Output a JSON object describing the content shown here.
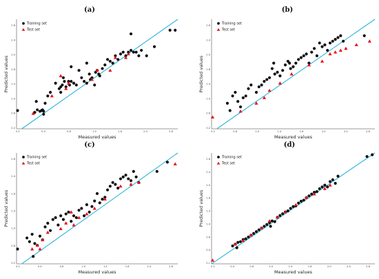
{
  "colors": {
    "fit_line": "#2bb5da",
    "training": "#111111",
    "test": "#e8101a",
    "axes": "#7a7a7a"
  },
  "chart_data": [
    {
      "panel": "(a)",
      "type": "scatter",
      "xlabel": "Measured values",
      "ylabel": "Predicted values",
      "xlim": [
        0.1,
        3.2
      ],
      "ylim": [
        0.2,
        3.2
      ],
      "xticks": [
        "0.1",
        "0.4",
        "0.8",
        "1.0",
        "1.6",
        "2.4",
        "2.8"
      ],
      "yticks": [
        "0.2",
        "0.6",
        "1.0",
        "1.4",
        "1.8",
        "2.0",
        "2.4",
        "2.8"
      ],
      "legend": {
        "placement": "top-left",
        "entries": [
          "Training set",
          "Test set"
        ]
      },
      "series": [
        {
          "name": "Training set",
          "marker": "circle",
          "x": [
            0.12,
            0.45,
            0.5,
            0.55,
            0.6,
            0.48,
            0.62,
            0.65,
            0.58,
            0.7,
            0.62,
            0.75,
            0.92,
            0.95,
            0.85,
            0.98,
            1.05,
            1.1,
            1.12,
            1.02,
            1.2,
            1.25,
            1.3,
            1.15,
            1.35,
            1.4,
            1.45,
            1.5,
            1.52,
            1.55,
            1.6,
            1.62,
            1.65,
            1.7,
            1.68,
            1.75,
            1.8,
            1.85,
            1.9,
            1.95,
            2.0,
            2.05,
            2.1,
            2.15,
            2.2,
            2.25,
            2.3,
            2.35,
            2.4,
            2.45,
            2.5,
            1.15,
            1.45,
            2.6,
            2.75,
            3.05,
            3.15,
            2.3,
            0.95,
            1.0
          ],
          "y": [
            0.7,
            0.65,
            0.72,
            0.68,
            0.72,
            0.95,
            0.6,
            0.9,
            0.7,
            1.1,
            0.68,
            1.2,
            1.3,
            1.35,
            1.45,
            1.4,
            1.35,
            1.5,
            1.4,
            1.5,
            1.45,
            1.4,
            1.8,
            1.5,
            1.6,
            1.5,
            1.45,
            1.7,
            1.55,
            1.6,
            1.4,
            1.75,
            1.8,
            1.65,
            1.7,
            1.85,
            1.95,
            2.1,
            2.05,
            2.0,
            2.2,
            2.1,
            2.25,
            2.3,
            2.2,
            2.3,
            2.35,
            2.3,
            2.3,
            2.2,
            2.35,
            1.9,
            2.0,
            2.2,
            2.45,
            2.9,
            2.9,
            2.8,
            1.2,
            1.6
          ]
        },
        {
          "name": "Test set",
          "marker": "triangle",
          "x": [
            0.42,
            0.78,
            0.95,
            1.05,
            1.1,
            1.55,
            1.65,
            1.9,
            2.0,
            2.2,
            2.25
          ],
          "y": [
            0.62,
            1.1,
            1.65,
            1.3,
            1.45,
            1.55,
            1.8,
            1.8,
            2.15,
            2.15,
            2.25
          ]
        }
      ]
    },
    {
      "panel": "(b)",
      "type": "scatter",
      "xlabel": "Measured values",
      "ylabel": "Predicted values",
      "xlim": [
        0.1,
        3.2
      ],
      "ylim": [
        0.2,
        3.2
      ],
      "xticks": [
        "0.2",
        "0.6",
        "1.0",
        "1.4",
        "1.8",
        "2.0",
        "2.4",
        "2.8"
      ],
      "yticks": [
        "0.2",
        "0.6",
        "1.0",
        "1.4",
        "1.8",
        "2.0",
        "2.4",
        "2.8"
      ],
      "legend": {
        "placement": "top-left",
        "entries": [
          "Training set",
          "Test set"
        ]
      },
      "series": [
        {
          "name": "Training set",
          "marker": "circle",
          "x": [
            0.4,
            0.45,
            0.55,
            0.6,
            0.65,
            0.7,
            0.75,
            0.8,
            0.85,
            0.95,
            1.0,
            1.05,
            1.1,
            1.15,
            1.2,
            1.25,
            1.3,
            1.35,
            1.4,
            1.45,
            1.5,
            1.55,
            1.6,
            1.65,
            1.7,
            1.75,
            1.8,
            1.85,
            1.9,
            1.95,
            2.0,
            2.05,
            2.1,
            2.15,
            2.2,
            2.25,
            2.3,
            2.35,
            2.4,
            2.45,
            2.5,
            2.55,
            1.28,
            1.58,
            0.5,
            3.0,
            2.6
          ],
          "y": [
            0.9,
            0.7,
            1.2,
            0.95,
            0.8,
            1.05,
            1.1,
            1.3,
            1.4,
            1.2,
            1.35,
            1.4,
            1.5,
            1.55,
            1.6,
            1.85,
            1.7,
            1.75,
            1.65,
            1.8,
            1.95,
            2.05,
            1.85,
            1.9,
            2.0,
            2.1,
            2.15,
            2.2,
            2.25,
            2.0,
            2.3,
            2.4,
            2.2,
            2.55,
            2.45,
            2.5,
            2.35,
            2.55,
            2.6,
            2.65,
            2.7,
            2.75,
            2.0,
            2.0,
            1.1,
            2.75,
            2.6
          ]
        },
        {
          "name": "Test set",
          "marker": "triangle",
          "x": [
            0.12,
            0.65,
            0.95,
            1.1,
            1.2,
            1.4,
            1.62,
            1.95,
            2.2,
            2.35,
            2.45,
            2.55,
            2.65,
            2.85,
            3.1
          ],
          "y": [
            0.52,
            0.68,
            0.9,
            1.05,
            1.25,
            1.45,
            1.7,
            1.95,
            2.05,
            2.25,
            2.3,
            2.35,
            2.4,
            2.5,
            2.6
          ]
        }
      ]
    },
    {
      "panel": "(c)",
      "type": "scatter",
      "xlabel": "Measured values",
      "ylabel": "Predicted values",
      "xlim": [
        0.1,
        3.2
      ],
      "ylim": [
        0.2,
        3.2
      ],
      "xticks": [
        "0.1",
        "0.4",
        "0.6",
        "1.0",
        "1.4",
        "1.8",
        "2.4",
        "2.8"
      ],
      "yticks": [
        "0.2",
        "0.6",
        "1.0",
        "1.4",
        "1.8",
        "2.4",
        "2.8"
      ],
      "legend": {
        "placement": "top-left",
        "entries": [
          "Training set",
          "Test set"
        ]
      },
      "series": [
        {
          "name": "Training set",
          "marker": "circle",
          "x": [
            0.12,
            0.3,
            0.35,
            0.4,
            0.45,
            0.5,
            0.55,
            0.6,
            0.65,
            0.7,
            0.75,
            0.8,
            0.85,
            0.9,
            0.95,
            1.0,
            1.05,
            1.1,
            1.15,
            1.2,
            1.25,
            1.3,
            1.35,
            1.4,
            1.45,
            1.5,
            1.55,
            1.6,
            1.65,
            1.7,
            1.75,
            1.8,
            1.85,
            1.9,
            1.95,
            2.0,
            2.05,
            2.1,
            2.15,
            2.2,
            2.25,
            2.3,
            2.35,
            2.4,
            2.45,
            3.0,
            2.8,
            0.42
          ],
          "y": [
            0.6,
            0.9,
            0.8,
            1.0,
            0.75,
            0.7,
            0.95,
            0.85,
            1.2,
            1.3,
            1.1,
            1.4,
            1.45,
            1.25,
            1.5,
            1.4,
            1.55,
            1.6,
            1.35,
            1.5,
            1.45,
            1.65,
            1.7,
            1.5,
            1.8,
            1.6,
            1.75,
            1.9,
            2.1,
            1.85,
            1.95,
            2.0,
            2.2,
            2.3,
            2.4,
            2.35,
            2.25,
            2.5,
            2.55,
            2.6,
            2.5,
            2.45,
            2.7,
            2.55,
            2.4,
            2.95,
            2.7,
            0.4
          ]
        },
        {
          "name": "Test set",
          "marker": "triangle",
          "x": [
            0.4,
            0.5,
            0.55,
            0.6,
            0.7,
            0.95,
            1.05,
            1.15,
            1.2,
            1.3,
            1.45,
            1.6,
            1.8,
            2.1,
            2.3,
            2.45,
            3.15
          ],
          "y": [
            0.6,
            0.7,
            0.6,
            0.85,
            1.05,
            1.15,
            1.3,
            1.6,
            1.25,
            1.45,
            1.55,
            1.7,
            1.95,
            2.3,
            2.35,
            2.4,
            2.9
          ]
        }
      ]
    },
    {
      "panel": "(d)",
      "type": "scatter",
      "xlabel": "Measured values",
      "ylabel": "Predicted values",
      "xlim": [
        0.1,
        3.2
      ],
      "ylim": [
        0.1,
        3.2
      ],
      "xticks": [
        "0.1",
        "0.4",
        "0.6",
        "1.0",
        "1.4",
        "1.8",
        "2.0",
        "2.4",
        "2.8"
      ],
      "yticks": [
        "0.1",
        "0.4",
        "0.6",
        "1.0",
        "1.4",
        "1.8",
        "2.0",
        "2.4",
        "2.8"
      ],
      "legend": {
        "placement": "top-left",
        "entries": [
          "Training set",
          "Test set"
        ]
      },
      "series": [
        {
          "name": "Training set",
          "marker": "circle",
          "x": [
            0.5,
            0.55,
            0.6,
            0.65,
            0.7,
            0.75,
            0.8,
            0.85,
            0.9,
            0.95,
            1.0,
            1.05,
            1.1,
            1.15,
            1.2,
            1.25,
            1.3,
            1.35,
            1.4,
            1.45,
            1.5,
            1.55,
            1.6,
            1.65,
            1.7,
            1.75,
            1.8,
            1.85,
            1.9,
            1.95,
            2.0,
            2.05,
            2.1,
            2.15,
            2.2,
            2.25,
            2.3,
            2.35,
            2.4,
            2.45,
            2.5,
            3.05,
            3.15,
            0.58,
            1.22
          ],
          "y": [
            0.6,
            0.65,
            0.7,
            0.72,
            0.78,
            0.8,
            0.85,
            0.9,
            0.95,
            1.0,
            1.05,
            1.1,
            1.15,
            1.2,
            1.25,
            1.3,
            1.28,
            1.4,
            1.45,
            1.5,
            1.55,
            1.58,
            1.65,
            1.7,
            1.72,
            1.8,
            1.85,
            1.88,
            1.95,
            2.0,
            2.05,
            2.1,
            2.12,
            2.2,
            2.25,
            2.3,
            2.25,
            2.4,
            2.45,
            2.35,
            2.55,
            3.1,
            3.15,
            0.55,
            1.15
          ]
        },
        {
          "name": "Test set",
          "marker": "triangle",
          "x": [
            0.12,
            0.55,
            0.7,
            0.85,
            1.05,
            1.2,
            1.35,
            1.5,
            1.7,
            1.9,
            2.05,
            2.25,
            2.35
          ],
          "y": [
            0.2,
            0.65,
            0.75,
            0.9,
            1.1,
            1.3,
            1.4,
            1.55,
            1.75,
            1.95,
            2.05,
            2.2,
            2.3
          ]
        }
      ]
    }
  ]
}
